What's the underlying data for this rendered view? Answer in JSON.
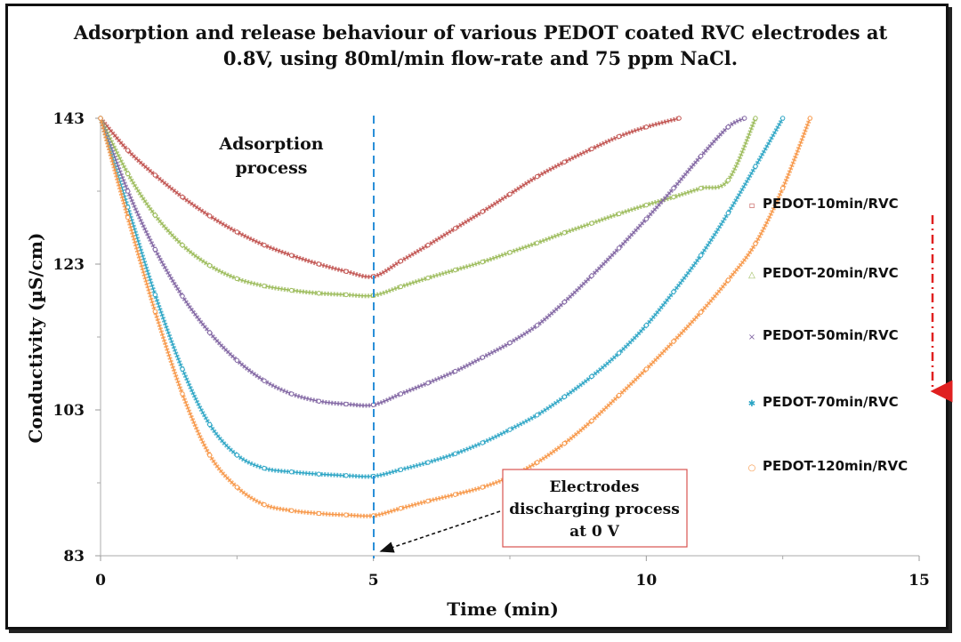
{
  "chart_data": {
    "type": "line",
    "title_line1": "Adsorption and release behaviour of various PEDOT coated RVC electrodes at",
    "title_line2": "0.8V, using 80ml/min flow-rate and 75 ppm NaCl.",
    "xlabel": "Time (min)",
    "ylabel": "Conductivity (µS/cm)",
    "xlim": [
      0,
      15
    ],
    "ylim": [
      83,
      143
    ],
    "xticks": [
      0,
      5,
      10,
      15
    ],
    "yticks": [
      83,
      103,
      123,
      143
    ],
    "legend_position": "right",
    "grid": false,
    "series": [
      {
        "name": "PEDOT-10min/RVC",
        "color": "#c0504d",
        "marker": "square",
        "x": [
          0,
          0.5,
          1,
          1.5,
          2,
          2.5,
          3,
          3.5,
          4,
          4.5,
          5,
          5.5,
          6,
          6.5,
          7,
          7.5,
          8,
          8.5,
          9,
          9.5,
          10,
          10.6
        ],
        "y": [
          143,
          138.6,
          135.2,
          132.2,
          129.6,
          127.4,
          125.6,
          124.2,
          123.0,
          122.0,
          121.3,
          123.4,
          125.6,
          127.9,
          130.2,
          132.6,
          135.0,
          137.0,
          138.8,
          140.5,
          141.8,
          143
        ]
      },
      {
        "name": "PEDOT-20min/RVC",
        "color": "#9bbb59",
        "marker": "triangle",
        "x": [
          0,
          0.5,
          1,
          1.5,
          2,
          2.5,
          3,
          3.5,
          4,
          4.5,
          5,
          5.5,
          6,
          6.5,
          7,
          7.5,
          8,
          8.5,
          9,
          9.5,
          10,
          10.5,
          11,
          11.5,
          12
        ],
        "y": [
          143,
          135.4,
          129.7,
          125.6,
          122.8,
          121.0,
          120.0,
          119.4,
          119.0,
          118.8,
          118.7,
          119.9,
          121.1,
          122.2,
          123.3,
          124.6,
          125.9,
          127.3,
          128.6,
          129.9,
          131.1,
          132.2,
          133.4,
          134.5,
          143
        ]
      },
      {
        "name": "PEDOT-50min/RVC",
        "color": "#8064a2",
        "marker": "cross",
        "x": [
          0,
          0.5,
          1,
          1.5,
          2,
          2.5,
          3,
          3.5,
          4,
          4.5,
          5,
          5.5,
          6,
          6.5,
          7,
          7.5,
          8,
          8.5,
          9,
          9.5,
          10,
          10.5,
          11,
          11.5,
          11.8
        ],
        "y": [
          143,
          133.0,
          125.0,
          118.6,
          113.6,
          109.8,
          107.0,
          105.2,
          104.2,
          103.8,
          103.7,
          105.2,
          106.7,
          108.3,
          110.2,
          112.2,
          114.6,
          117.8,
          121.4,
          125.2,
          129.2,
          133.4,
          137.8,
          141.8,
          143
        ]
      },
      {
        "name": "PEDOT-70min/RVC",
        "color": "#2aa4c4",
        "marker": "star",
        "x": [
          0,
          0.5,
          1,
          1.5,
          2,
          2.5,
          3,
          3.5,
          4,
          4.5,
          5,
          5.5,
          6,
          6.5,
          7,
          7.5,
          8,
          8.5,
          9,
          9.5,
          10,
          10.5,
          11,
          11.5,
          12,
          12.5
        ],
        "y": [
          143,
          130.8,
          118.8,
          108.6,
          101.0,
          96.8,
          95.0,
          94.5,
          94.2,
          94.0,
          93.9,
          94.8,
          95.8,
          97.0,
          98.5,
          100.3,
          102.3,
          104.8,
          107.6,
          110.8,
          114.6,
          119.2,
          124.2,
          130.0,
          136.4,
          143
        ]
      },
      {
        "name": "PEDOT-120min/RVC",
        "color": "#f79646",
        "marker": "circle",
        "x": [
          0,
          0.5,
          1,
          1.5,
          2,
          2.5,
          3,
          3.5,
          4,
          4.5,
          5,
          5.5,
          6,
          6.5,
          7,
          7.5,
          8,
          8.5,
          9,
          9.5,
          10,
          10.5,
          11,
          11.5,
          12,
          12.5,
          13
        ],
        "y": [
          143,
          129.4,
          116.5,
          105.2,
          96.8,
          92.4,
          90.0,
          89.2,
          88.8,
          88.6,
          88.5,
          89.5,
          90.5,
          91.4,
          92.4,
          93.8,
          95.8,
          98.4,
          101.5,
          105.0,
          108.6,
          112.4,
          116.4,
          120.8,
          125.8,
          133.4,
          143
        ]
      }
    ],
    "annotations": {
      "adsorption_line1": "Adsorption",
      "adsorption_line2": "process",
      "discharge_line1": "Electrodes",
      "discharge_line2": "discharging process",
      "discharge_line3": "at 0 V",
      "discharge_x": 5
    }
  }
}
